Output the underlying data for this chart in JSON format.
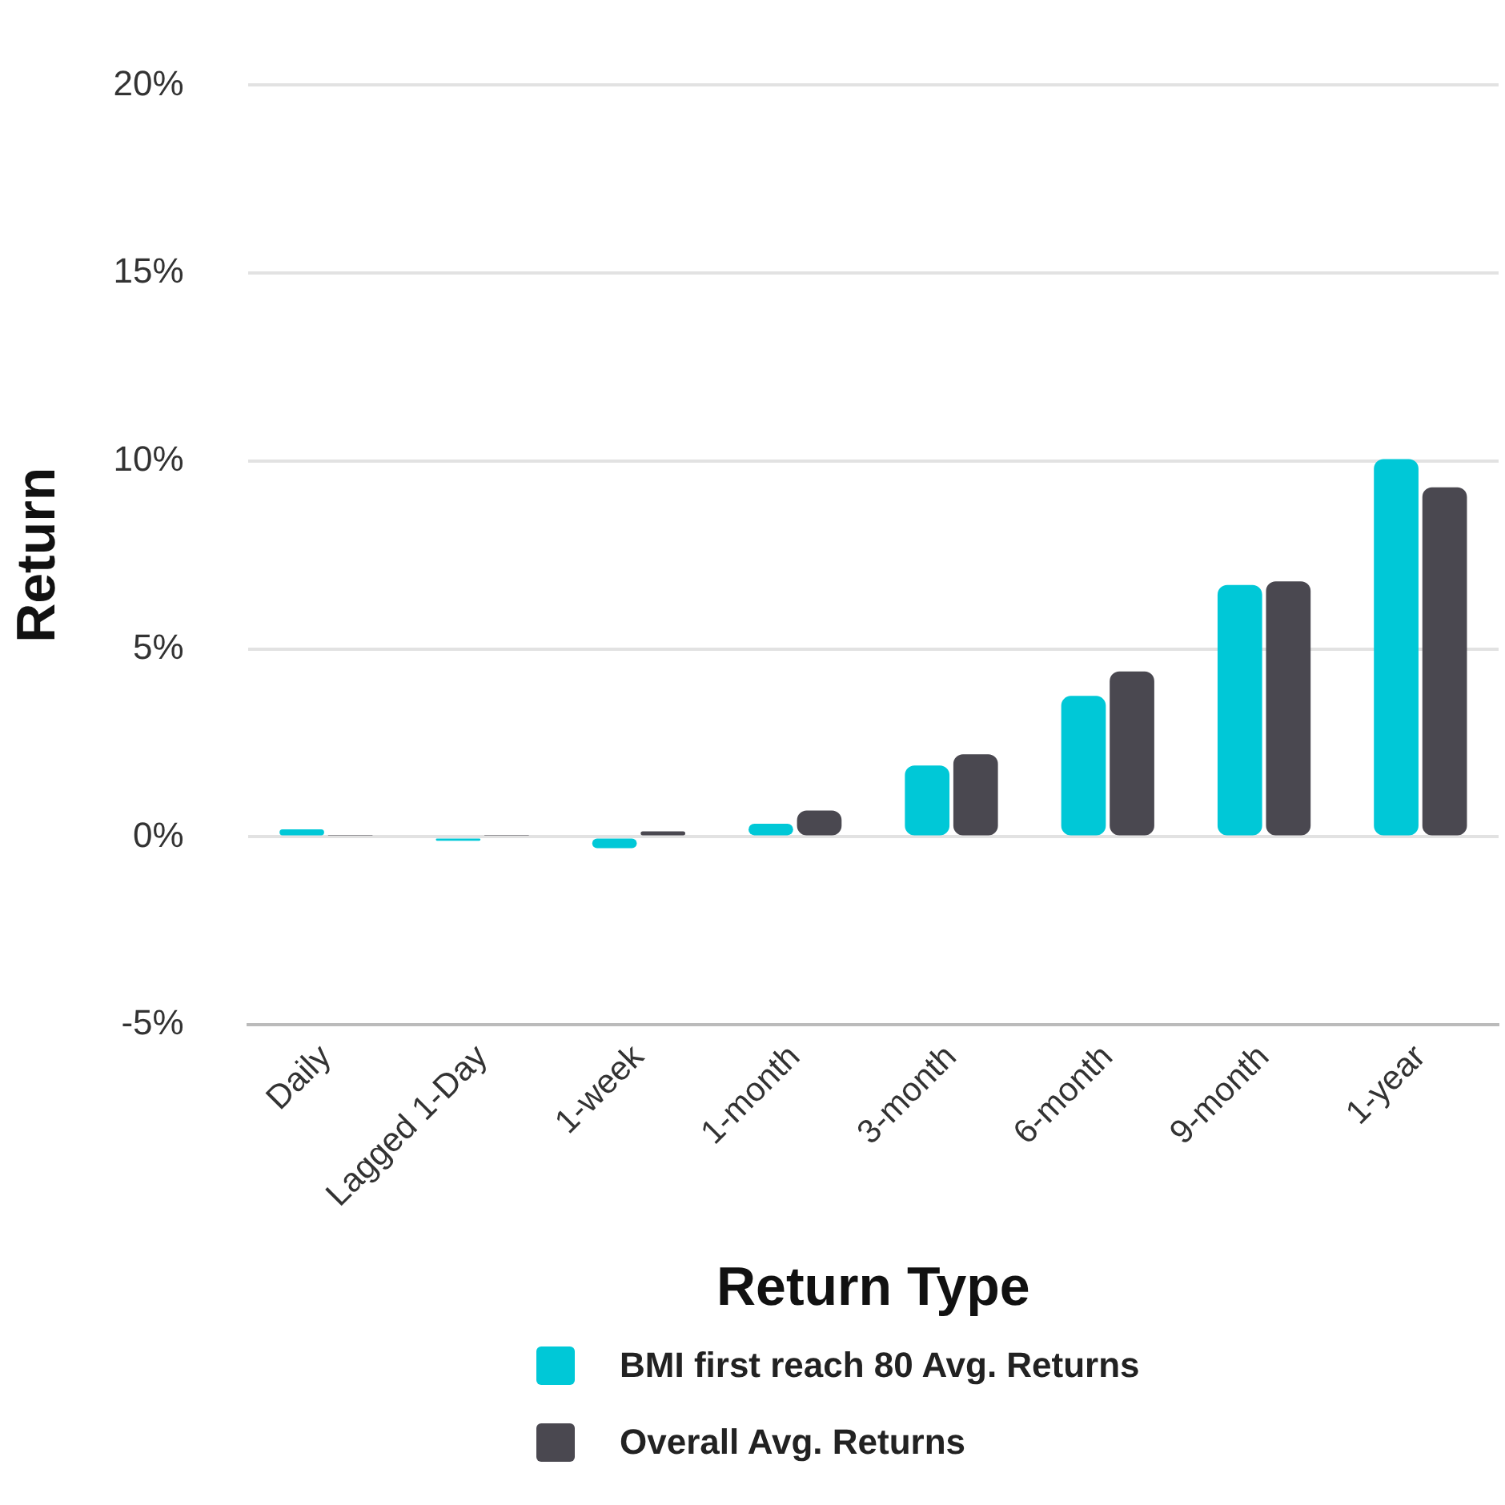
{
  "chart_data": {
    "type": "bar",
    "xlabel": "Return Type",
    "ylabel": "Return",
    "categories": [
      "Daily",
      "Lagged 1-Day",
      "1-week",
      "1-month",
      "3-month",
      "6-month",
      "9-month",
      "1-year"
    ],
    "series": [
      {
        "name": "BMI first reach 80 Avg. Returns",
        "color": "#00c8d7",
        "values": [
          0.2,
          -0.1,
          -0.3,
          0.35,
          1.9,
          3.75,
          6.7,
          10.05
        ]
      },
      {
        "name": "Overall Avg. Returns",
        "color": "#4a4850",
        "values": [
          0.03,
          0.03,
          0.15,
          0.7,
          2.2,
          4.4,
          6.8,
          9.3
        ]
      }
    ],
    "ylim": [
      -5,
      20
    ],
    "yticks": [
      {
        "value": -5,
        "label": "-5%"
      },
      {
        "value": 0,
        "label": "0%"
      },
      {
        "value": 5,
        "label": "5%"
      },
      {
        "value": 10,
        "label": "10%"
      },
      {
        "value": 15,
        "label": "15%"
      },
      {
        "value": 20,
        "label": "20%"
      }
    ],
    "grid": "y",
    "legend": "bottom"
  }
}
